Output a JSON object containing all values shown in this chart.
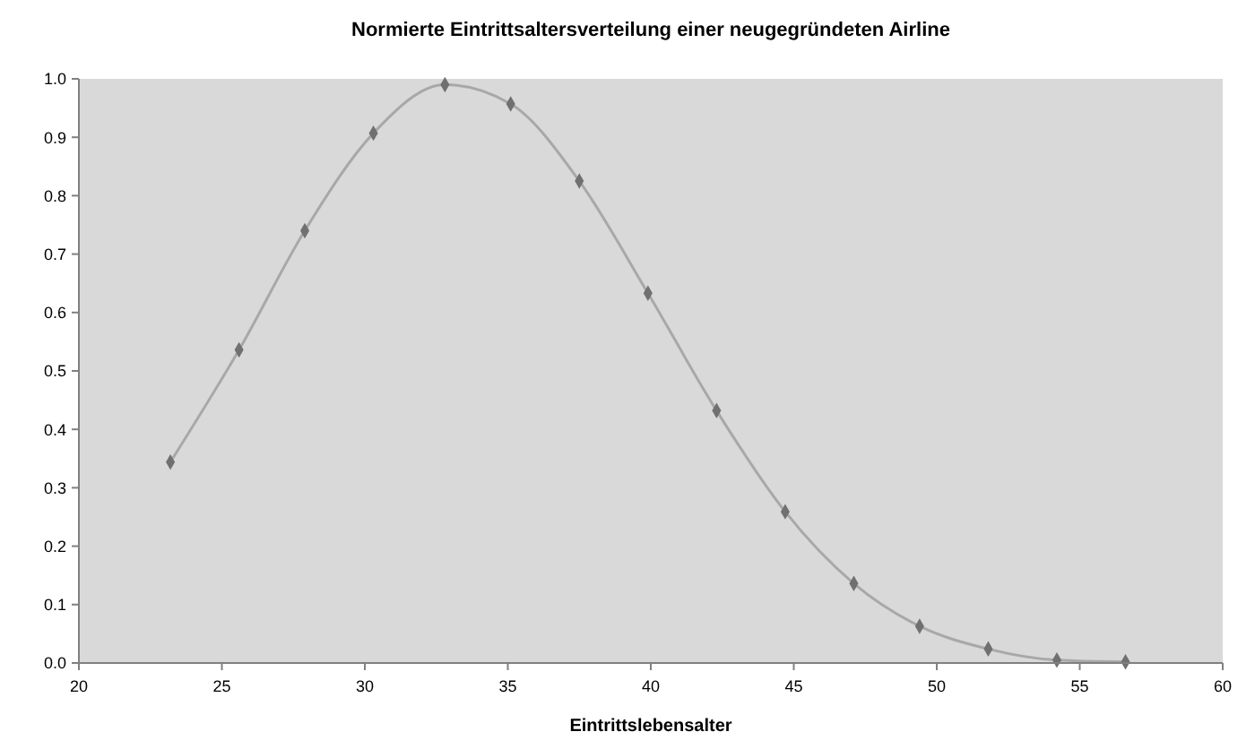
{
  "chart_data": {
    "type": "line",
    "title": "Normierte Eintrittsaltersverteilung einer neugegründeten Airline",
    "xlabel": "Eintrittslebensalter",
    "x": [
      23.2,
      25.6,
      27.9,
      30.3,
      32.8,
      35.1,
      37.5,
      39.9,
      42.3,
      44.7,
      47.1,
      49.4,
      51.8,
      54.2,
      56.6
    ],
    "series": [
      {
        "color": "#707070",
        "values": [
          0.344,
          0.536,
          0.74,
          0.907,
          0.99,
          0.957,
          0.825,
          0.633,
          0.432,
          0.259,
          0.136,
          0.063,
          0.024,
          0.005,
          0.002
        ]
      }
    ],
    "xlim": [
      20,
      60
    ],
    "xticks": [
      20,
      25,
      30,
      35,
      40,
      45,
      50,
      55,
      60
    ],
    "ylim": [
      0,
      1
    ],
    "yticks": [
      {
        "value": 0,
        "label": "0.0"
      },
      0.1,
      0.2,
      0.3,
      0.4,
      0.5,
      0.6,
      0.7,
      0.8,
      0.9,
      {
        "value": 1,
        "label": "1.0"
      }
    ],
    "grid": false,
    "marker": "diamond",
    "line_style": "solid"
  }
}
